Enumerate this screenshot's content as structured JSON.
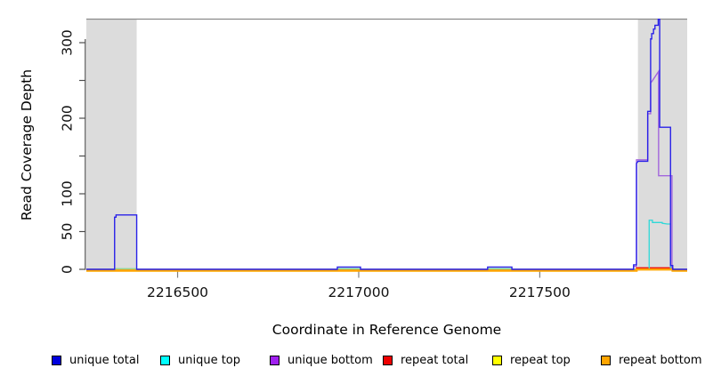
{
  "chart_data": {
    "type": "line",
    "title": "",
    "xlabel": "Coordinate in Reference Genome",
    "ylabel": "Read Coverage Depth",
    "xlim": [
      2216248,
      2217907
    ],
    "ylim": [
      0,
      335
    ],
    "grid": false,
    "x_ticks": [
      {
        "value": 2216500,
        "label": "2216500"
      },
      {
        "value": 2217000,
        "label": "2217000"
      },
      {
        "value": 2217500,
        "label": "2217500"
      }
    ],
    "y_ticks": [
      {
        "value": 0,
        "label": "0"
      },
      {
        "value": 50,
        "label": "50"
      },
      {
        "value": 100,
        "label": "100"
      },
      {
        "value": 150,
        "label": ""
      },
      {
        "value": 200,
        "label": "200"
      },
      {
        "value": 250,
        "label": ""
      },
      {
        "value": 300,
        "label": "300"
      }
    ],
    "shaded_regions": [
      {
        "x0": 2216248,
        "x1": 2216387,
        "color": "#dcdcdc"
      },
      {
        "x0": 2217771,
        "x1": 2217907,
        "color": "#dcdcdc"
      }
    ],
    "series": [
      {
        "name": "repeat total",
        "color": "#ee0000",
        "width": 1.3,
        "dy": 0,
        "points": [
          [
            2216248,
            0
          ],
          [
            2217767,
            0
          ],
          [
            2217767,
            2
          ],
          [
            2217867,
            2
          ],
          [
            2217867,
            0
          ],
          [
            2217907,
            0
          ]
        ]
      },
      {
        "name": "repeat top",
        "color": "#f2e400",
        "width": 1.3,
        "dy": 0.5,
        "points": [
          [
            2216248,
            0
          ],
          [
            2217907,
            0
          ]
        ]
      },
      {
        "name": "unique top",
        "color": "#2ed8d8",
        "width": 1.3,
        "dy": 0,
        "points": [
          [
            2216248,
            0
          ],
          [
            2217802,
            0
          ],
          [
            2217802,
            65
          ],
          [
            2217811,
            65
          ],
          [
            2217811,
            62
          ],
          [
            2217838,
            62
          ],
          [
            2217838,
            61
          ],
          [
            2217852,
            60
          ],
          [
            2217861,
            60
          ],
          [
            2217861,
            0
          ],
          [
            2217907,
            0
          ]
        ]
      },
      {
        "name": "unique top + repeat top overlap",
        "color": "#93d593",
        "width": 1.3,
        "dy": 0.4,
        "points": [
          [
            2216326,
            1.3
          ],
          [
            2216387,
            1.3
          ]
        ]
      },
      {
        "name": "unique top + repeat top overlap",
        "color": "#93d593",
        "width": 1.3,
        "dy": 0.4,
        "points": [
          [
            2216941,
            1.5
          ],
          [
            2217005,
            1.5
          ]
        ]
      },
      {
        "name": "unique top + repeat top overlap",
        "color": "#93d593",
        "width": 1.3,
        "dy": 0.4,
        "points": [
          [
            2217356,
            1.5
          ],
          [
            2217423,
            1.5
          ]
        ]
      },
      {
        "name": "unique bottom",
        "color": "#a266dd",
        "width": 1.4,
        "dy": 0.9,
        "points": [
          [
            2216248,
            0
          ],
          [
            2217759,
            0
          ],
          [
            2217759,
            5
          ],
          [
            2217767,
            5
          ],
          [
            2217767,
            146
          ],
          [
            2217798,
            146
          ],
          [
            2217798,
            207
          ],
          [
            2217806,
            207
          ],
          [
            2217806,
            248
          ],
          [
            2217810,
            250
          ],
          [
            2217828,
            263
          ],
          [
            2217828,
            125
          ],
          [
            2217865,
            125
          ],
          [
            2217865,
            0
          ],
          [
            2217907,
            0
          ]
        ]
      },
      {
        "name": "repeat bottom",
        "color": "#ffa500",
        "width": 2.6,
        "dy": 1.4,
        "points": [
          [
            2216248,
            0
          ],
          [
            2217767,
            0
          ],
          [
            2217767,
            1.5
          ],
          [
            2217867,
            1.5
          ],
          [
            2217867,
            0
          ],
          [
            2217907,
            0
          ]
        ]
      },
      {
        "name": "unique total",
        "color": "#2a22e8",
        "width": 1.4,
        "dy": 0,
        "points": [
          [
            2216248,
            0
          ],
          [
            2216326,
            0
          ],
          [
            2216326,
            69
          ],
          [
            2216330,
            69
          ],
          [
            2216330,
            72
          ],
          [
            2216387,
            72
          ],
          [
            2216387,
            0
          ],
          [
            2216941,
            0
          ],
          [
            2216941,
            3
          ],
          [
            2217005,
            3
          ],
          [
            2217005,
            0
          ],
          [
            2217356,
            0
          ],
          [
            2217356,
            3
          ],
          [
            2217423,
            3
          ],
          [
            2217423,
            0
          ],
          [
            2217759,
            0
          ],
          [
            2217759,
            6
          ],
          [
            2217767,
            6
          ],
          [
            2217767,
            140
          ],
          [
            2217771,
            143
          ],
          [
            2217798,
            143
          ],
          [
            2217798,
            209
          ],
          [
            2217806,
            209
          ],
          [
            2217806,
            305
          ],
          [
            2217809,
            305
          ],
          [
            2217809,
            312
          ],
          [
            2217814,
            312
          ],
          [
            2217814,
            318
          ],
          [
            2217818,
            318
          ],
          [
            2217818,
            323
          ],
          [
            2217827,
            323
          ],
          [
            2217827,
            331
          ],
          [
            2217831,
            331
          ],
          [
            2217831,
            188
          ],
          [
            2217861,
            188
          ],
          [
            2217861,
            5
          ],
          [
            2217867,
            5
          ],
          [
            2217867,
            0
          ],
          [
            2217907,
            0
          ]
        ]
      }
    ]
  },
  "legend": {
    "items": [
      {
        "label": "unique total",
        "color": "#0000dd"
      },
      {
        "label": "unique top",
        "color": "#00ffff"
      },
      {
        "label": "unique bottom",
        "color": "#a020f0"
      },
      {
        "label": "repeat total",
        "color": "#ee0000"
      },
      {
        "label": "repeat top",
        "color": "#ffff00"
      },
      {
        "label": "repeat bottom",
        "color": "#ffa500"
      }
    ]
  },
  "colors": {
    "band": "#dcdcdc",
    "plot_border": "#8a8a8a",
    "axis": "#4d4d4d",
    "tick": "#808080",
    "tick_label": "#111111"
  }
}
